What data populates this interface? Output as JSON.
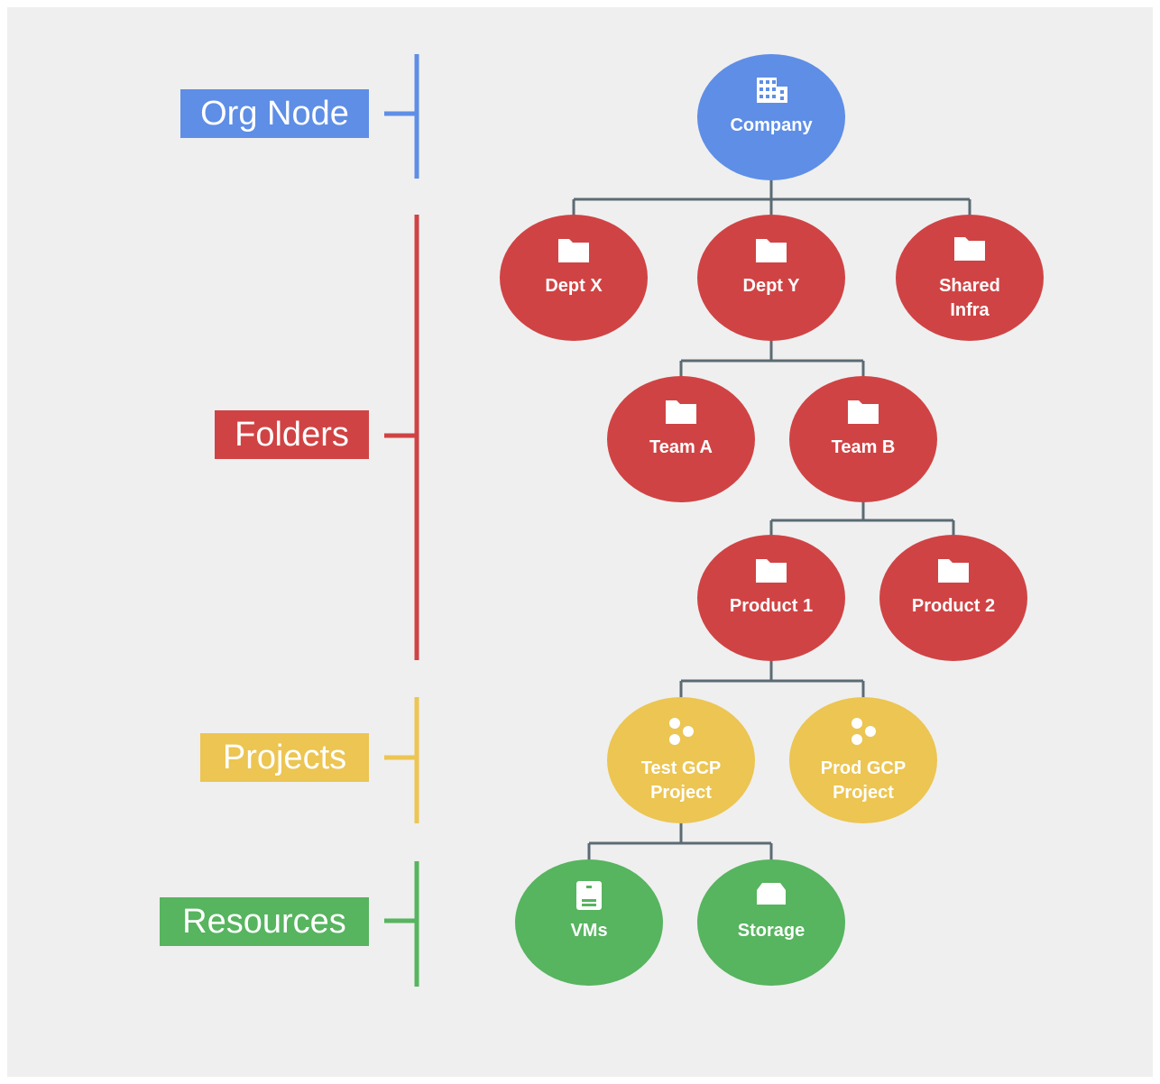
{
  "colors": {
    "background": "#efefef",
    "org": "#5e8ee6",
    "folder": "#d04344",
    "project": "#ecc552",
    "resource": "#57b45f",
    "connector": "#5b6b73"
  },
  "levels": [
    {
      "id": "org",
      "label": "Org Node",
      "color": "#5e8ee6"
    },
    {
      "id": "folders",
      "label": "Folders",
      "color": "#d04344"
    },
    {
      "id": "projects",
      "label": "Projects",
      "color": "#ecc552"
    },
    {
      "id": "resources",
      "label": "Resources",
      "color": "#57b45f"
    }
  ],
  "nodes": [
    {
      "id": "company",
      "lines": [
        "Company"
      ],
      "level": "org",
      "icon": "building-icon",
      "parent": null
    },
    {
      "id": "dept-x",
      "lines": [
        "Dept X"
      ],
      "level": "folders",
      "icon": "folder-icon",
      "parent": "company"
    },
    {
      "id": "dept-y",
      "lines": [
        "Dept Y"
      ],
      "level": "folders",
      "icon": "folder-icon",
      "parent": "company"
    },
    {
      "id": "shared-infra",
      "lines": [
        "Shared",
        "Infra"
      ],
      "level": "folders",
      "icon": "folder-icon",
      "parent": "company"
    },
    {
      "id": "team-a",
      "lines": [
        "Team A"
      ],
      "level": "folders",
      "icon": "folder-icon",
      "parent": "dept-y"
    },
    {
      "id": "team-b",
      "lines": [
        "Team B"
      ],
      "level": "folders",
      "icon": "folder-icon",
      "parent": "dept-y"
    },
    {
      "id": "product-1",
      "lines": [
        "Product 1"
      ],
      "level": "folders",
      "icon": "folder-icon",
      "parent": "team-b"
    },
    {
      "id": "product-2",
      "lines": [
        "Product 2"
      ],
      "level": "folders",
      "icon": "folder-icon",
      "parent": "team-b"
    },
    {
      "id": "test-gcp-project",
      "lines": [
        "Test GCP",
        "Project"
      ],
      "level": "projects",
      "icon": "project-dots-icon",
      "parent": "product-1"
    },
    {
      "id": "prod-gcp-project",
      "lines": [
        "Prod GCP",
        "Project"
      ],
      "level": "projects",
      "icon": "project-dots-icon",
      "parent": "product-1"
    },
    {
      "id": "vms",
      "lines": [
        "VMs"
      ],
      "level": "resources",
      "icon": "vm-icon",
      "parent": "test-gcp-project"
    },
    {
      "id": "storage",
      "lines": [
        "Storage"
      ],
      "level": "resources",
      "icon": "storage-icon",
      "parent": "test-gcp-project"
    }
  ]
}
